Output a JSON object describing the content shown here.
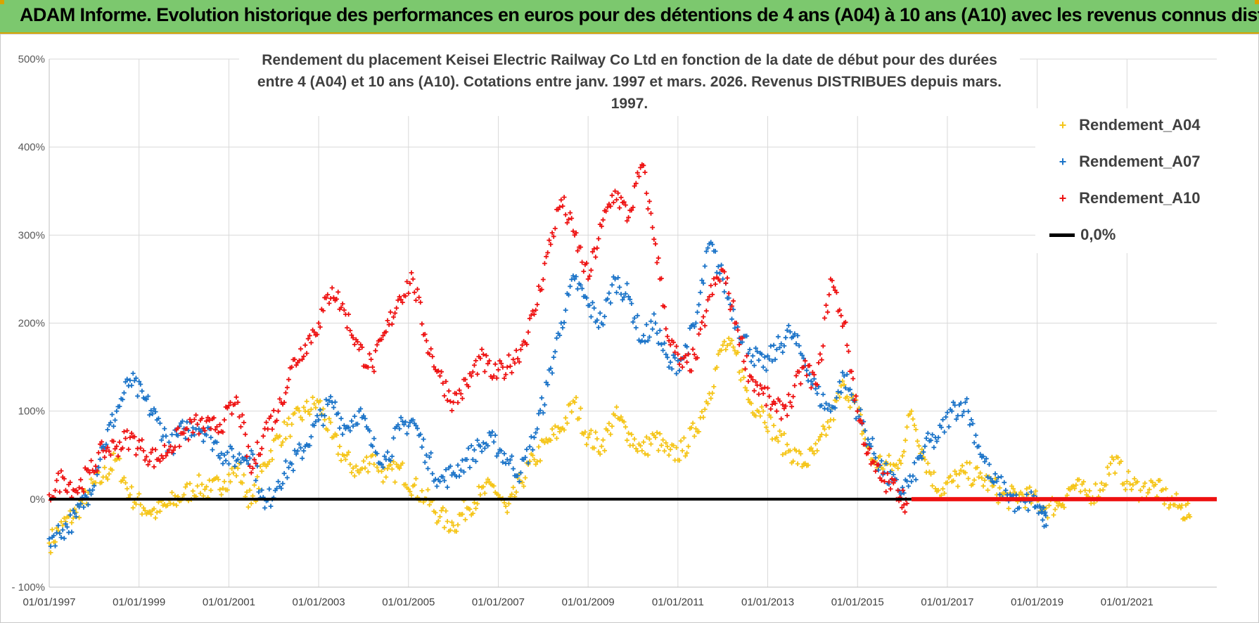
{
  "banner": {
    "title": "ADAM Informe. Evolution historique des performances en euros pour des détentions de 4 ans (A04) à 10 ans (A10) avec les revenus connus distribués"
  },
  "colors": {
    "banner_bg": "#7cc86e",
    "A04": "#f5c518",
    "A07": "#1a73c8",
    "A10": "#ee1111",
    "zero": "#000000"
  },
  "chart_data": {
    "type": "scatter",
    "title_line1": "Rendement du placement Keisei Electric Railway Co Ltd en fonction de la date de début pour des durées",
    "title_line2": "entre 4 (A04) et 10 ans (A10).  Cotations entre janv. 1997 et mars. 2026. Revenus DISTRIBUES depuis mars. 1997.",
    "xlim": [
      1997.0,
      2023.0
    ],
    "ylim": [
      -100,
      500
    ],
    "y_ticks": [
      500,
      400,
      300,
      200,
      100,
      0,
      -100
    ],
    "y_tick_labels": [
      "500%",
      "400%",
      "300%",
      "200%",
      "100%",
      "0%",
      "- 100%"
    ],
    "x_ticks": [
      1997,
      1999,
      2001,
      2003,
      2005,
      2007,
      2009,
      2011,
      2013,
      2015,
      2017,
      2019,
      2021
    ],
    "x_tick_labels": [
      "01/01/1997",
      "01/01/1999",
      "01/01/2001",
      "01/01/2003",
      "01/01/2005",
      "01/01/2007",
      "01/01/2009",
      "01/01/2011",
      "01/01/2013",
      "01/01/2015",
      "01/01/2017",
      "01/01/2019",
      "01/01/2021"
    ],
    "legend_position": "top-right",
    "series": [
      {
        "name": "Rendement_A04",
        "key": "A04",
        "marker": "+",
        "x": [
          1997.0,
          1997.3,
          1997.6,
          1997.9,
          1998.2,
          1998.5,
          1998.8,
          1999.1,
          1999.4,
          1999.7,
          2000.0,
          2000.3,
          2000.6,
          2000.9,
          2001.2,
          2001.5,
          2001.8,
          2002.1,
          2002.4,
          2002.7,
          2003.0,
          2003.3,
          2003.6,
          2003.9,
          2004.2,
          2004.5,
          2004.8,
          2005.1,
          2005.4,
          2005.7,
          2006.0,
          2006.3,
          2006.6,
          2006.9,
          2007.2,
          2007.5,
          2007.8,
          2008.1,
          2008.4,
          2008.7,
          2009.0,
          2009.3,
          2009.6,
          2009.9,
          2010.2,
          2010.5,
          2010.8,
          2011.1,
          2011.4,
          2011.7,
          2012.0,
          2012.3,
          2012.6,
          2012.9,
          2013.2,
          2013.5,
          2013.8,
          2014.1,
          2014.4,
          2014.7,
          2015.0,
          2015.3,
          2015.6,
          2015.9,
          2016.2,
          2016.5,
          2016.8,
          2017.1,
          2017.4,
          2017.7,
          2018.0,
          2018.3,
          2018.6,
          2018.9,
          2019.2,
          2019.5,
          2019.8,
          2020.1,
          2020.4,
          2020.7,
          2021.0,
          2021.3,
          2021.6,
          2021.9,
          2022.2,
          2022.4
        ],
        "values": [
          -50,
          -30,
          -15,
          10,
          25,
          45,
          5,
          -10,
          -15,
          -5,
          5,
          15,
          10,
          20,
          35,
          -5,
          40,
          70,
          85,
          100,
          110,
          70,
          45,
          30,
          50,
          25,
          35,
          15,
          0,
          -20,
          -30,
          -10,
          5,
          15,
          -15,
          20,
          45,
          65,
          80,
          110,
          70,
          60,
          95,
          75,
          55,
          70,
          50,
          55,
          80,
          120,
          175,
          165,
          110,
          100,
          70,
          55,
          40,
          55,
          90,
          130,
          100,
          45,
          40,
          35,
          100,
          45,
          10,
          20,
          30,
          25,
          15,
          0,
          5,
          0,
          -10,
          -5,
          15,
          5,
          10,
          45,
          20,
          10,
          15,
          0,
          -10,
          -20
        ]
      },
      {
        "name": "Rendement_A07",
        "key": "A07",
        "marker": "+",
        "x": [
          1997.0,
          1997.3,
          1997.6,
          1997.9,
          1998.2,
          1998.5,
          1998.8,
          1999.1,
          1999.4,
          1999.7,
          2000.0,
          2000.3,
          2000.6,
          2000.9,
          2001.2,
          2001.5,
          2001.8,
          2002.1,
          2002.4,
          2002.7,
          2003.0,
          2003.3,
          2003.6,
          2003.9,
          2004.2,
          2004.5,
          2004.8,
          2005.1,
          2005.4,
          2005.7,
          2006.0,
          2006.3,
          2006.6,
          2006.9,
          2007.2,
          2007.5,
          2007.8,
          2008.1,
          2008.4,
          2008.7,
          2009.0,
          2009.3,
          2009.6,
          2009.9,
          2010.2,
          2010.5,
          2010.8,
          2011.1,
          2011.4,
          2011.7,
          2012.0,
          2012.3,
          2012.6,
          2012.9,
          2013.2,
          2013.5,
          2013.8,
          2014.1,
          2014.4,
          2014.7,
          2015.0,
          2015.3,
          2015.6,
          2015.9,
          2016.2,
          2016.5,
          2016.8,
          2017.1,
          2017.4,
          2017.7,
          2018.0,
          2018.3,
          2018.6,
          2018.9,
          2019.1,
          2019.2
        ],
        "values": [
          -45,
          -35,
          -20,
          10,
          60,
          100,
          135,
          115,
          90,
          60,
          80,
          85,
          70,
          50,
          45,
          55,
          -10,
          20,
          40,
          60,
          90,
          110,
          80,
          100,
          60,
          45,
          80,
          90,
          50,
          20,
          30,
          45,
          60,
          65,
          45,
          30,
          70,
          130,
          200,
          250,
          220,
          200,
          250,
          230,
          180,
          200,
          150,
          160,
          200,
          290,
          250,
          200,
          170,
          150,
          170,
          190,
          160,
          120,
          100,
          140,
          100,
          60,
          30,
          10,
          20,
          60,
          70,
          100,
          110,
          60,
          20,
          10,
          -10,
          0,
          -15,
          -30
        ]
      },
      {
        "name": "Rendement_A10",
        "key": "A10",
        "marker": "+",
        "x": [
          1997.0,
          1997.3,
          1997.6,
          1997.9,
          1998.2,
          1998.5,
          1998.8,
          1999.1,
          1999.4,
          1999.7,
          2000.0,
          2000.3,
          2000.6,
          2000.9,
          2001.2,
          2001.5,
          2001.8,
          2002.1,
          2002.4,
          2002.7,
          2003.0,
          2003.3,
          2003.6,
          2003.9,
          2004.2,
          2004.5,
          2004.8,
          2005.1,
          2005.4,
          2005.7,
          2006.0,
          2006.3,
          2006.6,
          2006.9,
          2007.2,
          2007.5,
          2007.8,
          2008.1,
          2008.4,
          2008.7,
          2009.0,
          2009.3,
          2009.6,
          2009.9,
          2010.2,
          2010.5,
          2010.8,
          2011.1,
          2011.4,
          2011.7,
          2012.0,
          2012.3,
          2012.6,
          2012.9,
          2013.2,
          2013.5,
          2013.8,
          2014.1,
          2014.4,
          2014.7,
          2015.0,
          2015.3,
          2015.6,
          2015.9,
          2016.1
        ],
        "values": [
          5,
          25,
          10,
          30,
          55,
          60,
          70,
          55,
          45,
          60,
          75,
          85,
          80,
          90,
          110,
          30,
          80,
          100,
          150,
          175,
          200,
          240,
          210,
          170,
          150,
          190,
          230,
          250,
          180,
          140,
          110,
          130,
          160,
          140,
          150,
          170,
          210,
          280,
          340,
          300,
          250,
          310,
          350,
          320,
          380,
          290,
          180,
          150,
          160,
          230,
          260,
          200,
          140,
          120,
          100,
          110,
          150,
          130,
          250,
          200,
          100,
          40,
          20,
          10,
          -5
        ]
      }
    ],
    "zero_series": {
      "name": "0,0%",
      "value": 0
    },
    "a10_zero_tail": {
      "x_from": 2016.2,
      "x_to": 2023.0,
      "value": 0
    }
  }
}
